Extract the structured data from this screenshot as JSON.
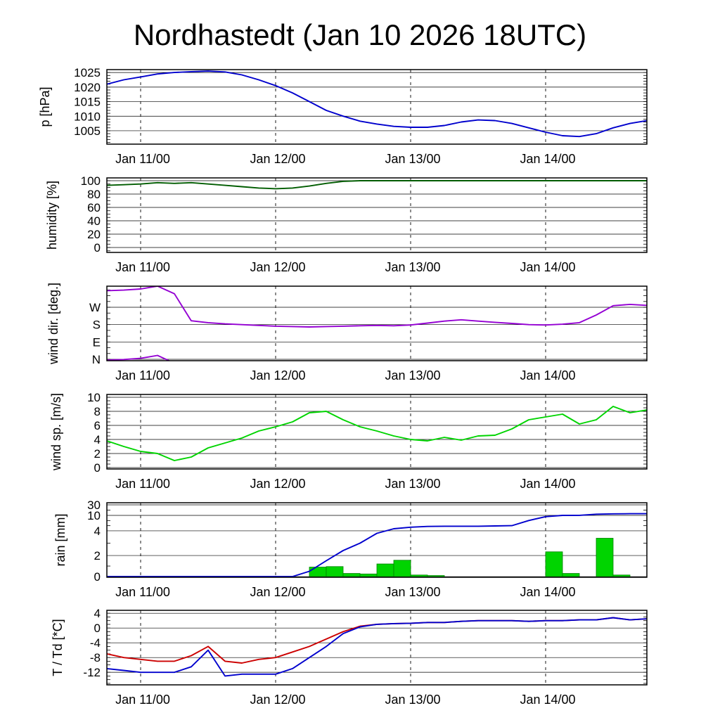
{
  "title": "Nordhastedt (Jan 10 2026 18UTC)",
  "chart_data": {
    "type": "line",
    "title": "Nordhastedt (Jan 10 2026 18UTC)",
    "x_range": [
      0,
      96
    ],
    "x_start_label": "Jan 10 18UTC",
    "x_hours": [
      0,
      3,
      6,
      9,
      12,
      15,
      18,
      21,
      24,
      27,
      30,
      33,
      36,
      39,
      42,
      45,
      48,
      51,
      54,
      57,
      60,
      63,
      66,
      69,
      72,
      75,
      78,
      81,
      84,
      87,
      90,
      93,
      96
    ],
    "x_ticks": [
      {
        "t": 6,
        "label": "Jan 11/00"
      },
      {
        "t": 30,
        "label": "Jan 12/00"
      },
      {
        "t": 54,
        "label": "Jan 13/00"
      },
      {
        "t": 78,
        "label": "Jan 14/00"
      }
    ],
    "panels": [
      {
        "key": "pressure",
        "ylabel": "p [hPa]",
        "yrange": [
          1000.4,
          1026.0
        ],
        "minor": 1,
        "yticks": [
          {
            "v": 1025,
            "label": "1025"
          },
          {
            "v": 1020,
            "label": "1020"
          },
          {
            "v": 1015,
            "label": "1015"
          },
          {
            "v": 1010,
            "label": "1010"
          },
          {
            "v": 1005,
            "label": "1005"
          }
        ],
        "series": [
          {
            "name": "pressure",
            "color": "#0000cd",
            "values": [
              1021,
              1022.5,
              1023.5,
              1024.5,
              1025,
              1025.3,
              1025.5,
              1025.2,
              1024.2,
              1022.5,
              1020.5,
              1018,
              1015,
              1012,
              1010,
              1008.3,
              1007.3,
              1006.5,
              1006.2,
              1006.2,
              1006.8,
              1008,
              1008.7,
              1008.5,
              1007.5,
              1006,
              1004.5,
              1003.3,
              1003,
              1004,
              1006,
              1007.5,
              1008.5
            ]
          }
        ]
      },
      {
        "key": "humidity",
        "ylabel": "humidity [%]",
        "yrange": [
          -7.4,
          104.2
        ],
        "minor": 5,
        "yticks": [
          {
            "v": 100,
            "label": "100"
          },
          {
            "v": 80,
            "label": "80"
          },
          {
            "v": 60,
            "label": "60"
          },
          {
            "v": 40,
            "label": "40"
          },
          {
            "v": 20,
            "label": "20"
          },
          {
            "v": 0,
            "label": "0"
          }
        ],
        "series": [
          {
            "name": "humidity",
            "color": "#005c00",
            "values": [
              93,
              94,
              95,
              97,
              96,
              97,
              95,
              93,
              91,
              89,
              88,
              89,
              92,
              96,
              99,
              100,
              100,
              100,
              100,
              100,
              100,
              100,
              100,
              100,
              100,
              100,
              100,
              100,
              100,
              100,
              100,
              100,
              100
            ]
          }
        ]
      },
      {
        "key": "wind-direction",
        "ylabel": "wind dir. [deg.]",
        "yrange": [
          -7.3,
          379.5
        ],
        "minor": 30,
        "wrap": true,
        "yticks": [
          {
            "v": 270,
            "label": "W"
          },
          {
            "v": 180,
            "label": "S"
          },
          {
            "v": 90,
            "label": "E"
          },
          {
            "v": 0,
            "label": "N"
          }
        ],
        "series": [
          {
            "name": "wind-direction",
            "color": "#9400d3",
            "values": [
              356,
              359,
              365,
              380,
              340,
              200,
              190,
              184,
              180,
              176,
              172,
              170,
              168,
              170,
              172,
              174,
              176,
              174,
              178,
              188,
              198,
              205,
              198,
              192,
              186,
              180,
              178,
              182,
              190,
              230,
              278,
              285,
              280
            ]
          }
        ]
      },
      {
        "key": "wind-speed",
        "ylabel": "wind sp. [m/s]",
        "yrange": [
          -0.2,
          10.4
        ],
        "minor": 0.5,
        "yticks": [
          {
            "v": 10,
            "label": "10"
          },
          {
            "v": 8,
            "label": "8"
          },
          {
            "v": 6,
            "label": "6"
          },
          {
            "v": 4,
            "label": "4"
          },
          {
            "v": 2,
            "label": "2"
          },
          {
            "v": 0,
            "label": "0"
          }
        ],
        "series": [
          {
            "name": "wind-speed",
            "color": "#00d400",
            "values": [
              3.8,
              3.0,
              2.3,
              2.0,
              1.0,
              1.5,
              2.8,
              3.5,
              4.2,
              5.2,
              5.8,
              6.5,
              7.8,
              8.0,
              6.8,
              5.8,
              5.2,
              4.5,
              4.0,
              3.8,
              4.3,
              3.9,
              4.5,
              4.6,
              5.5,
              6.8,
              7.2,
              7.6,
              6.2,
              6.8,
              8.7,
              7.8,
              8.2
            ]
          }
        ]
      },
      {
        "key": "rain",
        "ylabel": "rain [mm]",
        "ymap": [
          [
            0,
            0.009
          ],
          [
            2,
            0.292
          ],
          [
            4,
            0.623
          ],
          [
            10,
            0.83
          ],
          [
            30,
            0.972
          ],
          [
            50,
            1.0
          ]
        ],
        "minor_values": [
          1,
          3,
          6,
          8,
          20
        ],
        "yticks": [
          {
            "v": 30,
            "label": "30"
          },
          {
            "v": 10,
            "label": "10"
          },
          {
            "v": 4,
            "label": "4"
          },
          {
            "v": 2,
            "label": "2"
          },
          {
            "v": 0,
            "label": "0"
          }
        ],
        "bars": {
          "name": "rain-3h-bars",
          "color": "#00d400",
          "edge": "#008000",
          "values": [
            0,
            0,
            0,
            0,
            0,
            0,
            0,
            0,
            0,
            0,
            0,
            0,
            0.9,
            0.95,
            0.3,
            0.25,
            1.2,
            1.55,
            0.15,
            0.1,
            0,
            0,
            0,
            0,
            0,
            0,
            2.3,
            0.3,
            0,
            3.4,
            0.15,
            0,
            0
          ]
        },
        "series": [
          {
            "name": "rain-accumulated",
            "color": "#0000cd",
            "values": [
              0,
              0,
              0,
              0,
              0,
              0,
              0,
              0,
              0,
              0,
              0,
              0,
              0.5,
              1.5,
              2.4,
              3.0,
              3.8,
              4.8,
              5.4,
              5.7,
              5.8,
              5.8,
              5.8,
              5.9,
              6.0,
              8.0,
              9.5,
              10.0,
              10.2,
              12.3,
              13.0,
              13.2,
              13.2
            ]
          }
        ]
      },
      {
        "key": "temperature",
        "ylabel": "T / Td [*C]",
        "yrange": [
          -15.4,
          4.8
        ],
        "minor": 1,
        "yticks": [
          {
            "v": 4,
            "label": "4"
          },
          {
            "v": 0,
            "label": "0"
          },
          {
            "v": -4,
            "label": "-4"
          },
          {
            "v": -8,
            "label": "-8"
          },
          {
            "v": -12,
            "label": "-12"
          }
        ],
        "series": [
          {
            "name": "temperature",
            "color": "#cc0000",
            "values": [
              -7,
              -8,
              -8.5,
              -9,
              -9,
              -7.5,
              -5,
              -9,
              -9.5,
              -8.5,
              -8,
              -6.5,
              -5,
              -3,
              -1,
              0.5,
              1,
              1.2,
              1.3,
              1.5,
              1.5,
              1.8,
              2,
              2,
              2,
              1.8,
              2,
              2,
              2.2,
              2.2,
              2.8,
              2.2,
              2.5
            ]
          },
          {
            "name": "dewpoint",
            "color": "#0000cd",
            "values": [
              -11,
              -11.5,
              -12,
              -12,
              -12,
              -10.5,
              -6,
              -13,
              -12.5,
              -12.5,
              -12.5,
              -11,
              -8,
              -5,
              -1.5,
              0.3,
              1,
              1.2,
              1.3,
              1.5,
              1.5,
              1.8,
              2,
              2,
              2,
              1.8,
              2,
              2,
              2.2,
              2.2,
              2.8,
              2.2,
              2.5
            ]
          }
        ]
      }
    ]
  }
}
